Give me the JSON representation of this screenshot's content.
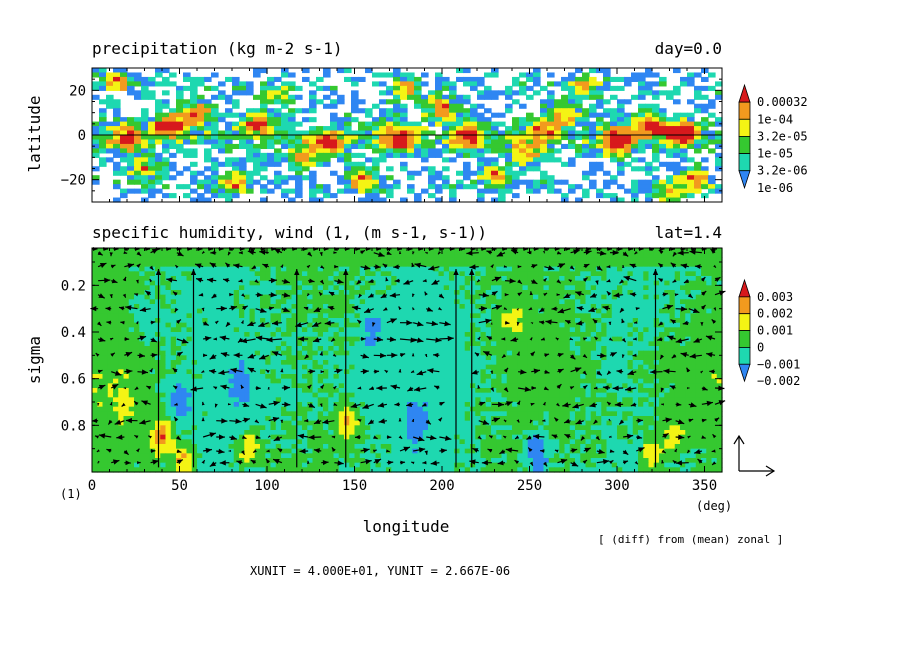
{
  "chart_data": [
    {
      "type": "heatmap",
      "title": "precipitation (kg m-2 s-1)",
      "right_title": "day=0.0",
      "ylabel": "latitude",
      "xlim": [
        0,
        360
      ],
      "ylim": [
        -30,
        30
      ],
      "yticks": [
        {
          "v": 20,
          "label": "20"
        },
        {
          "v": 0,
          "label": "0"
        },
        {
          "v": -20,
          "label": "−20"
        }
      ],
      "levels": [
        {
          "label": "0.00032",
          "color": "#d7191c"
        },
        {
          "label": "1e-04",
          "color": "#f29a1e"
        },
        {
          "label": "3.2e-05",
          "color": "#f4f414"
        },
        {
          "label": "1e-05",
          "color": "#35c830"
        },
        {
          "label": "3.2e-06",
          "color": "#1ed8b0"
        },
        {
          "label": "1e-06",
          "color": "#2f86f2"
        }
      ],
      "grid": false
    },
    {
      "type": "heatmap",
      "title": "specific humidity, wind (1, (m s-1, s-1))",
      "right_title": "lat=1.4",
      "xlabel": "longitude",
      "ylabel": "sigma",
      "xlim": [
        0,
        360
      ],
      "ylim": [
        1.0,
        0.04
      ],
      "xticks": [
        "0",
        "50",
        "100",
        "150",
        "200",
        "250",
        "300",
        "350"
      ],
      "x_unit": "(deg)",
      "y_unit": "(1)",
      "yticks": [
        {
          "v": 0.2,
          "label": "0.2"
        },
        {
          "v": 0.4,
          "label": "0.4"
        },
        {
          "v": 0.6,
          "label": "0.6"
        },
        {
          "v": 0.8,
          "label": "0.8"
        }
      ],
      "levels": [
        {
          "label": "0.003",
          "color": "#d7191c"
        },
        {
          "label": "0.002",
          "color": "#f29a1e"
        },
        {
          "label": "0.001",
          "color": "#f4f414"
        },
        {
          "label": "0",
          "color": "#35c830"
        },
        {
          "label": "−0.001",
          "color": "#1ed8b0"
        },
        {
          "label": "−0.002",
          "color": "#2f86f2"
        }
      ],
      "note": "[ (diff) from (mean) zonal ]",
      "units_text": "XUNIT = 4.000E+01, YUNIT = 2.667E-06",
      "grid": false
    }
  ]
}
